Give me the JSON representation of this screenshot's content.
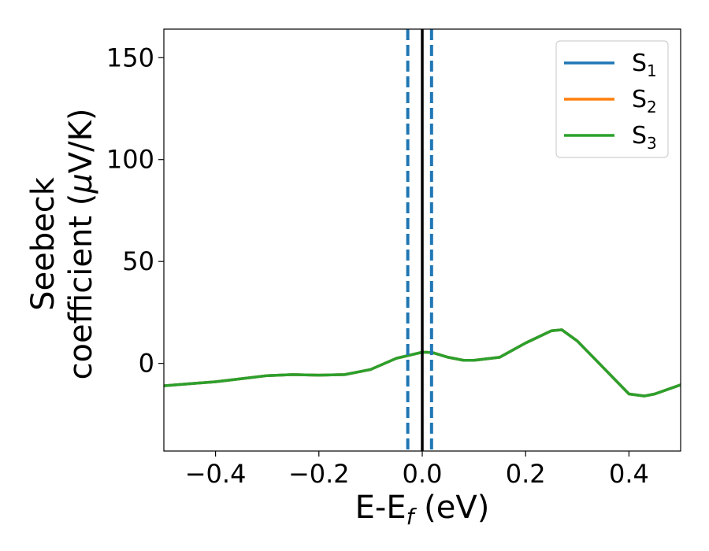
{
  "chart_data": {
    "type": "line",
    "xlabel": "E-E",
    "xlabel_sub": "f",
    "xlabel_unit": " (eV)",
    "ylabel_line1": "Seebeck",
    "ylabel_line2": "coefficient  (",
    "ylabel_mu": "μ",
    "ylabel_unit_tail": "V/K)",
    "xlim": [
      -0.5,
      0.5
    ],
    "ylim": [
      -43,
      164
    ],
    "xticks": [
      -0.4,
      -0.2,
      0.0,
      0.2,
      0.4
    ],
    "xtick_labels": [
      "−0.4",
      "−0.2",
      "0.0",
      "0.2",
      "0.4"
    ],
    "yticks": [
      0,
      50,
      100,
      150
    ],
    "ytick_labels": [
      "0",
      "50",
      "100",
      "150"
    ],
    "grid": false,
    "legend_position": "top-right",
    "vlines": [
      {
        "x": 0.0,
        "style": "solid",
        "color": "#000000"
      },
      {
        "x": -0.028,
        "style": "dashed",
        "color": "#1f77b4"
      },
      {
        "x": 0.018,
        "style": "dashed",
        "color": "#1f77b4"
      }
    ],
    "series": [
      {
        "name": "S",
        "sub": "1",
        "color": "#1f77b4",
        "x": [
          -0.5,
          -0.45,
          -0.4,
          -0.35,
          -0.3,
          -0.25,
          -0.2,
          -0.15,
          -0.1,
          -0.05,
          0.0,
          0.02,
          0.05,
          0.08,
          0.1,
          0.15,
          0.2,
          0.25,
          0.27,
          0.3,
          0.35,
          0.4,
          0.43,
          0.45,
          0.5
        ],
        "y": [
          -11,
          -10,
          -9,
          -7.5,
          -6,
          -5.5,
          -5.8,
          -5.5,
          -3,
          2.5,
          5.5,
          5.3,
          3,
          1.5,
          1.5,
          3,
          10,
          16,
          16.5,
          11,
          -2,
          -15,
          -16,
          -15,
          -10.5
        ]
      },
      {
        "name": "S",
        "sub": "2",
        "color": "#ff7f0e",
        "x": [
          -0.5,
          -0.45,
          -0.4,
          -0.35,
          -0.3,
          -0.25,
          -0.2,
          -0.15,
          -0.1,
          -0.05,
          0.0,
          0.02,
          0.05,
          0.08,
          0.1,
          0.15,
          0.2,
          0.25,
          0.27,
          0.3,
          0.35,
          0.4,
          0.43,
          0.45,
          0.5
        ],
        "y": [
          -11,
          -10,
          -9,
          -7.5,
          -6,
          -5.5,
          -5.8,
          -5.5,
          -3,
          2.5,
          5.5,
          5.3,
          3,
          1.5,
          1.5,
          3,
          10,
          16,
          16.5,
          11,
          -2,
          -15,
          -16,
          -15,
          -10.5
        ]
      },
      {
        "name": "S",
        "sub": "3",
        "color": "#2ca02c",
        "x": [
          -0.5,
          -0.45,
          -0.4,
          -0.35,
          -0.3,
          -0.25,
          -0.2,
          -0.15,
          -0.1,
          -0.05,
          0.0,
          0.02,
          0.05,
          0.08,
          0.1,
          0.15,
          0.2,
          0.25,
          0.27,
          0.3,
          0.35,
          0.4,
          0.43,
          0.45,
          0.5
        ],
        "y": [
          -11,
          -10,
          -9,
          -7.5,
          -6,
          -5.5,
          -5.8,
          -5.5,
          -3,
          2.5,
          5.5,
          5.3,
          3,
          1.5,
          1.5,
          3,
          10,
          16,
          16.5,
          11,
          -2,
          -15,
          -16,
          -15,
          -10.5
        ]
      }
    ]
  }
}
